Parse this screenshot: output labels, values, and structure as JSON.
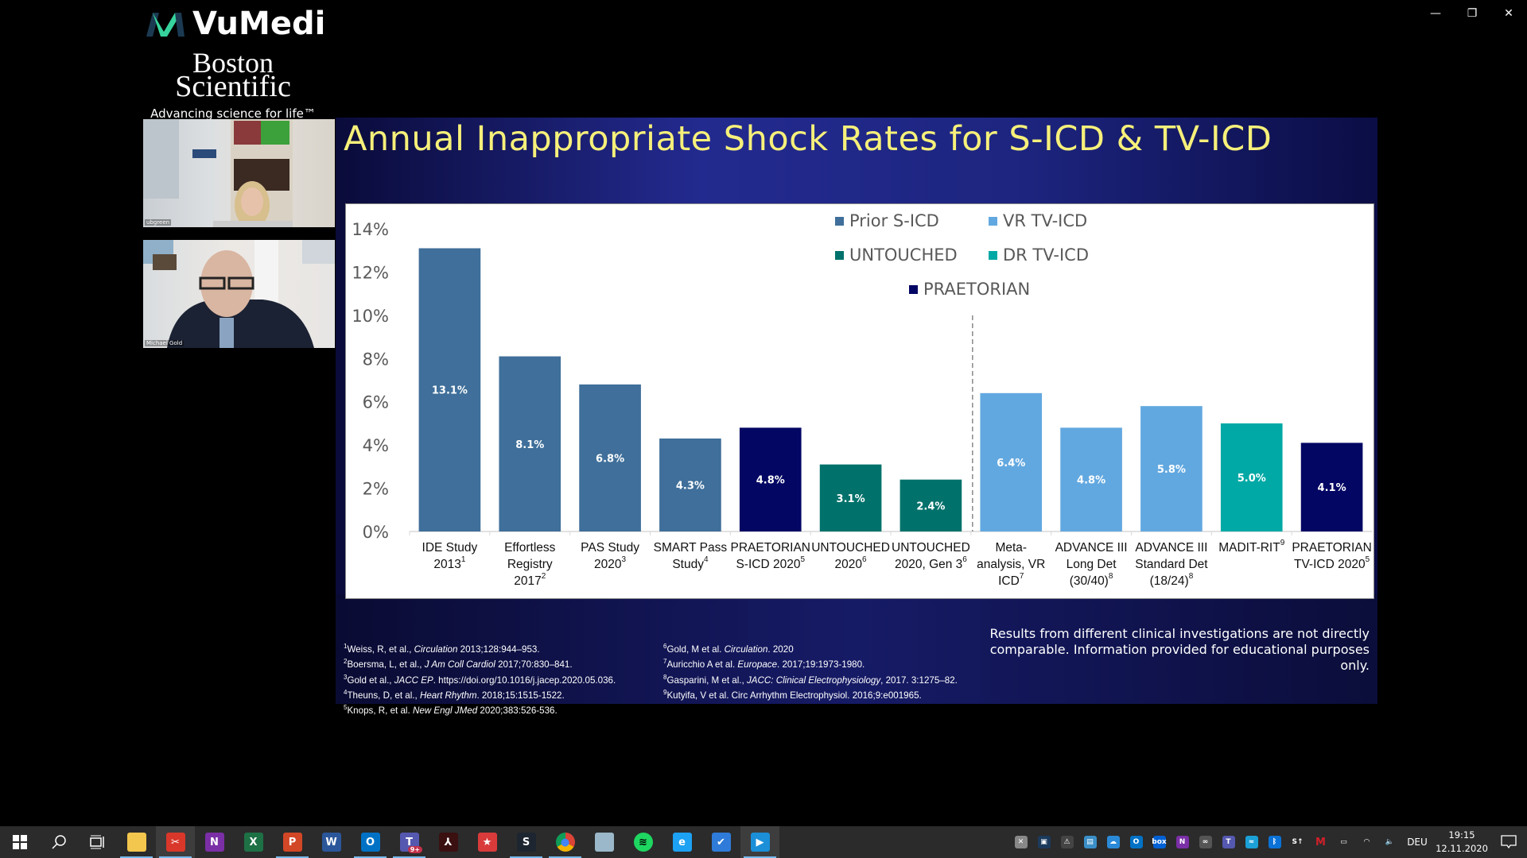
{
  "window_controls": {
    "minimize": "—",
    "restore": "❐",
    "close": "✕"
  },
  "branding": {
    "vumedi": "VuMedi",
    "sponsor_line1": "Boston",
    "sponsor_line2": "Scientific",
    "tagline": "Advancing science for life™"
  },
  "participants": [
    {
      "name": "ubgreen"
    },
    {
      "name": "Michael Gold"
    }
  ],
  "slide": {
    "title": "Annual Inappropriate Shock Rates for S-ICD & TV-ICD",
    "references_left": [
      {
        "num": "1",
        "text": "Weiss, R, et al., ",
        "journal": "Circulation",
        "rest": " 2013;128:944–953."
      },
      {
        "num": "2",
        "text": "Boersma, L, et al., ",
        "journal": "J Am Coll Cardiol",
        "rest": " 2017;70:830–841."
      },
      {
        "num": "3",
        "text": "Gold et al., ",
        "journal": "JACC EP",
        "rest": ". https://doi.org/10.1016/j.jacep.2020.05.036."
      },
      {
        "num": "4",
        "text": "Theuns, D, et al., ",
        "journal": "Heart Rhythm",
        "rest": ". 2018;15:1515-1522."
      },
      {
        "num": "5",
        "text": "Knops, R, et al. ",
        "journal": "New Engl JMed",
        "rest": " 2020;383:526-536."
      }
    ],
    "references_right": [
      {
        "num": "6",
        "text": "Gold, M et al. ",
        "journal": "Circulation",
        "rest": ". 2020"
      },
      {
        "num": "7",
        "text": "Auricchio A et al. ",
        "journal": "Europace",
        "rest": ". 2017;19:1973-1980."
      },
      {
        "num": "8",
        "text": "Gasparini, M et al., ",
        "journal": "JACC: Clinical Electrophysiology",
        "rest": ", 2017. 3:1275–82."
      },
      {
        "num": "9",
        "text": "Kutyifa, V et al. Circ Arrhythm Electrophysiol. 2016;9:e001965.",
        "journal": "",
        "rest": ""
      }
    ],
    "disclaimer": "Results from different clinical investigations are not directly comparable. Information provided for educational purposes only."
  },
  "chart_data": {
    "type": "bar",
    "title": "Annual Inappropriate Shock Rates for S-ICD & TV-ICD",
    "xlabel": "",
    "ylabel": "",
    "ylim": [
      0,
      14
    ],
    "yticks": [
      "0%",
      "2%",
      "4%",
      "6%",
      "8%",
      "10%",
      "12%",
      "14%"
    ],
    "grid": false,
    "legend_position": "top-right",
    "legend": [
      {
        "name": "Prior S-ICD",
        "color": "#3f6f9a"
      },
      {
        "name": "VR TV-ICD",
        "color": "#62a8e0"
      },
      {
        "name": "UNTOUCHED",
        "color": "#00726b"
      },
      {
        "name": "DR TV-ICD",
        "color": "#00a9a5"
      },
      {
        "name": "PRAETORIAN",
        "color": "#030663"
      }
    ],
    "divider_after_index": 6,
    "categories": [
      {
        "lines": [
          "IDE Study",
          "2013"
        ],
        "sup": "1",
        "value": 13.1,
        "label": "13.1%",
        "series": "Prior S-ICD"
      },
      {
        "lines": [
          "Effortless",
          "Registry",
          "2017"
        ],
        "sup": "2",
        "value": 8.1,
        "label": "8.1%",
        "series": "Prior S-ICD"
      },
      {
        "lines": [
          "PAS Study",
          "2020"
        ],
        "sup": "3",
        "value": 6.8,
        "label": "6.8%",
        "series": "Prior S-ICD"
      },
      {
        "lines": [
          "SMART Pass",
          "Study"
        ],
        "sup": "4",
        "value": 4.3,
        "label": "4.3%",
        "series": "Prior S-ICD"
      },
      {
        "lines": [
          "PRAETORIAN",
          "S-ICD 2020"
        ],
        "sup": "5",
        "value": 4.8,
        "label": "4.8%",
        "series": "PRAETORIAN"
      },
      {
        "lines": [
          "UNTOUCHED",
          "2020"
        ],
        "sup": "6",
        "value": 3.1,
        "label": "3.1%",
        "series": "UNTOUCHED"
      },
      {
        "lines": [
          "UNTOUCHED",
          "2020, Gen 3"
        ],
        "sup": "6",
        "value": 2.4,
        "label": "2.4%",
        "series": "UNTOUCHED"
      },
      {
        "lines": [
          "Meta-",
          "analysis, VR",
          "ICD"
        ],
        "sup": "7",
        "value": 6.4,
        "label": "6.4%",
        "series": "VR TV-ICD"
      },
      {
        "lines": [
          "ADVANCE III",
          "Long Det",
          "(30/40)"
        ],
        "sup": "8",
        "value": 4.8,
        "label": "4.8%",
        "series": "VR TV-ICD"
      },
      {
        "lines": [
          "ADVANCE III",
          "Standard Det",
          "(18/24)"
        ],
        "sup": "8",
        "value": 5.8,
        "label": "5.8%",
        "series": "VR TV-ICD"
      },
      {
        "lines": [
          "MADIT-RIT"
        ],
        "sup": "9",
        "value": 5.0,
        "label": "5.0%",
        "series": "DR TV-ICD"
      },
      {
        "lines": [
          "PRAETORIAN",
          "TV-ICD 2020"
        ],
        "sup": "5",
        "value": 4.1,
        "label": "4.1%",
        "series": "PRAETORIAN"
      }
    ]
  },
  "taskbar": {
    "apps": [
      {
        "name": "File Explorer",
        "icon": "folder-icon",
        "color": "#f3c64d",
        "glyph": "",
        "running": true
      },
      {
        "name": "Snipping Tool",
        "icon": "scissors-icon",
        "color": "#d9372a",
        "glyph": "✂",
        "running": true,
        "active": true
      },
      {
        "name": "OneNote",
        "icon": "onenote-icon",
        "color": "#7b2fa6",
        "glyph": "N",
        "running": false
      },
      {
        "name": "Excel",
        "icon": "excel-icon",
        "color": "#1e7145",
        "glyph": "X",
        "running": false
      },
      {
        "name": "PowerPoint",
        "icon": "powerpoint-icon",
        "color": "#d24726",
        "glyph": "P",
        "running": true
      },
      {
        "name": "Word",
        "icon": "word-icon",
        "color": "#2b579a",
        "glyph": "W",
        "running": false
      },
      {
        "name": "Outlook",
        "icon": "outlook-icon",
        "color": "#0072c6",
        "glyph": "O",
        "running": true
      },
      {
        "name": "Teams",
        "icon": "teams-icon",
        "color": "#5558af",
        "glyph": "T",
        "running": true,
        "badge": "9+"
      },
      {
        "name": "Acrobat Reader",
        "icon": "acrobat-icon",
        "color": "#3a1010",
        "glyph": "⅄",
        "running": false
      },
      {
        "name": "Bookmarks",
        "icon": "bookmark-icon",
        "color": "#d93b3b",
        "glyph": "★",
        "running": false
      },
      {
        "name": "S App",
        "icon": "s-app-icon",
        "color": "#1d2530",
        "glyph": "S",
        "running": true
      },
      {
        "name": "Chrome",
        "icon": "chrome-icon",
        "color": "#e0b000",
        "glyph": "●",
        "running": true
      },
      {
        "name": "Notes",
        "icon": "notepad-icon",
        "color": "#9ab8c9",
        "glyph": "",
        "running": false
      },
      {
        "name": "Spotify",
        "icon": "spotify-icon",
        "color": "#1ed760",
        "glyph": "≋",
        "running": false
      },
      {
        "name": "Internet Explorer",
        "icon": "ie-icon",
        "color": "#1da1f2",
        "glyph": "e",
        "running": false
      },
      {
        "name": "To Do",
        "icon": "todo-icon",
        "color": "#2f7bd9",
        "glyph": "✔",
        "running": false
      },
      {
        "name": "Video Player",
        "icon": "video-player-icon",
        "color": "#1b8fd8",
        "glyph": "▶",
        "running": true,
        "active": true
      }
    ],
    "tray": [
      {
        "icon": "network-drive-icon",
        "color": "#888",
        "glyph": "✕"
      },
      {
        "icon": "webcam-icon",
        "color": "#1b3a5c",
        "glyph": "▣"
      },
      {
        "icon": "security-warning-icon",
        "color": "#444",
        "glyph": "⚠"
      },
      {
        "icon": "display-icon",
        "color": "#3a8fc8",
        "glyph": "▤"
      },
      {
        "icon": "onedrive-icon",
        "color": "#2a8ad8",
        "glyph": "☁"
      },
      {
        "icon": "outlook-tray-icon",
        "color": "#0072c6",
        "glyph": "O"
      },
      {
        "icon": "box-icon",
        "color": "#0061d5",
        "glyph": "box"
      },
      {
        "icon": "onenote-clip-icon",
        "color": "#7b2fa6",
        "glyph": "N"
      },
      {
        "icon": "creative-cloud-icon",
        "color": "#555",
        "glyph": "∞"
      },
      {
        "icon": "teams-tray-icon",
        "color": "#5558af",
        "glyph": "T"
      },
      {
        "icon": "cisco-icon",
        "color": "#1ba0d7",
        "glyph": "≈"
      },
      {
        "icon": "bluetooth-icon",
        "color": "#0a72d6",
        "glyph": "ᛒ"
      },
      {
        "icon": "update-icon",
        "color": "#2b2b2b",
        "glyph": "S↑"
      },
      {
        "icon": "mcafee-icon",
        "color": "#c01818",
        "glyph": "M"
      },
      {
        "icon": "battery-icon",
        "color": "#2b2b2b",
        "glyph": "▭"
      },
      {
        "icon": "wifi-icon",
        "color": "#2b2b2b",
        "glyph": "◠"
      },
      {
        "icon": "volume-icon",
        "color": "#2b2b2b",
        "glyph": "🔈"
      }
    ],
    "language": "DEU",
    "time": "19:15",
    "date": "12.11.2020"
  }
}
